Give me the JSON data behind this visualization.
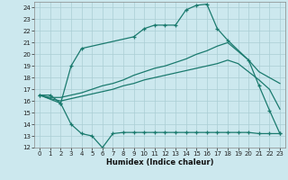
{
  "xlabel": "Humidex (Indice chaleur)",
  "background_color": "#cce8ee",
  "grid_color": "#aacdd4",
  "line_color": "#1a7a6e",
  "xlim": [
    -0.5,
    23.5
  ],
  "ylim": [
    12,
    24.5
  ],
  "xticks": [
    0,
    1,
    2,
    3,
    4,
    5,
    6,
    7,
    8,
    9,
    10,
    11,
    12,
    13,
    14,
    15,
    16,
    17,
    18,
    19,
    20,
    21,
    22,
    23
  ],
  "yticks": [
    12,
    13,
    14,
    15,
    16,
    17,
    18,
    19,
    20,
    21,
    22,
    23,
    24
  ],
  "lines": [
    {
      "x": [
        0,
        1,
        2,
        3,
        4,
        9,
        10,
        11,
        12,
        13,
        14,
        15,
        16,
        17,
        18,
        20,
        21,
        22,
        23
      ],
      "y": [
        16.5,
        16.5,
        15.8,
        19.0,
        20.5,
        21.5,
        22.2,
        22.5,
        22.5,
        22.5,
        23.8,
        24.2,
        24.3,
        22.2,
        21.2,
        19.5,
        17.3,
        15.2,
        13.2
      ],
      "has_markers": true
    },
    {
      "x": [
        0,
        1,
        2,
        3,
        4,
        5,
        6,
        7,
        8,
        9,
        10,
        11,
        12,
        13,
        14,
        15,
        16,
        17,
        18,
        20,
        21,
        22,
        23
      ],
      "y": [
        16.5,
        16.3,
        16.3,
        16.5,
        16.7,
        17.0,
        17.3,
        17.5,
        17.8,
        18.2,
        18.5,
        18.8,
        19.0,
        19.3,
        19.6,
        20.0,
        20.3,
        20.7,
        21.0,
        19.5,
        18.5,
        18.0,
        17.5
      ],
      "has_markers": false
    },
    {
      "x": [
        0,
        1,
        2,
        3,
        4,
        5,
        6,
        7,
        8,
        9,
        10,
        11,
        12,
        13,
        14,
        15,
        16,
        17,
        18,
        19,
        20,
        21,
        22,
        23
      ],
      "y": [
        16.5,
        16.2,
        16.0,
        16.2,
        16.4,
        16.6,
        16.8,
        17.0,
        17.3,
        17.5,
        17.8,
        18.0,
        18.2,
        18.4,
        18.6,
        18.8,
        19.0,
        19.2,
        19.5,
        19.2,
        18.5,
        17.8,
        17.0,
        15.3
      ],
      "has_markers": false
    },
    {
      "x": [
        0,
        2,
        3,
        4,
        5,
        6,
        7,
        8,
        9,
        10,
        11,
        12,
        13,
        14,
        15,
        16,
        17,
        18,
        19,
        20,
        21,
        22,
        23
      ],
      "y": [
        16.5,
        15.8,
        14.0,
        13.2,
        13.0,
        12.0,
        13.2,
        13.3,
        13.3,
        13.3,
        13.3,
        13.3,
        13.3,
        13.3,
        13.3,
        13.3,
        13.3,
        13.3,
        13.3,
        13.3,
        13.2,
        13.2,
        13.2
      ],
      "has_markers": true
    }
  ]
}
